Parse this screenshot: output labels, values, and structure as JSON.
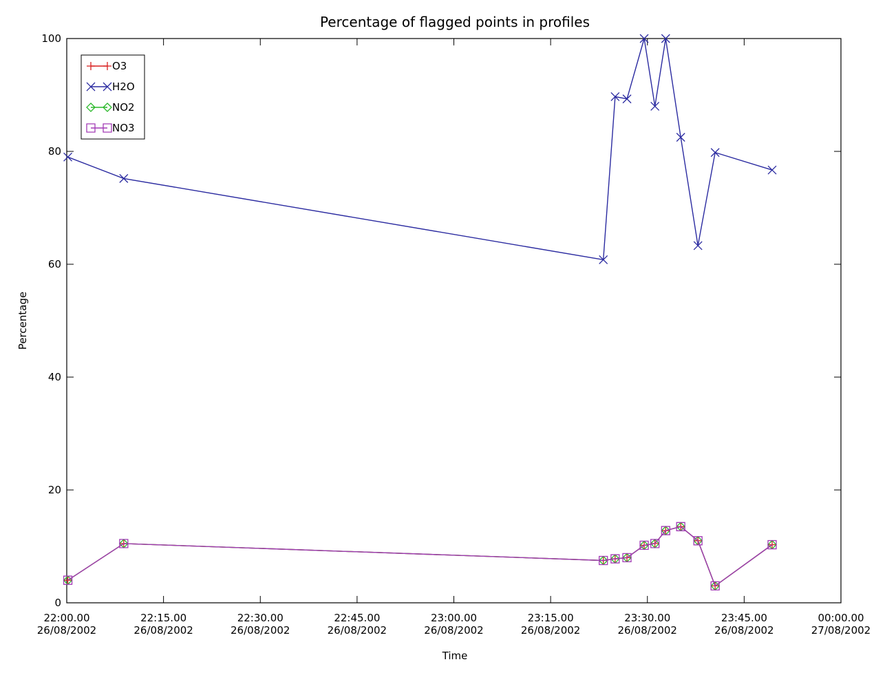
{
  "chart_data": {
    "type": "line",
    "title": "Percentage of flagged points in profiles",
    "xlabel": "Time",
    "ylabel": "Percentage",
    "ylim": [
      0,
      100
    ],
    "xlim": [
      "2002-08-26T22:00:00",
      "2002-08-27T00:00:00"
    ],
    "grid": false,
    "legend_position": "top-left",
    "x_ticks": [
      {
        "value": "2002-08-26T22:00:00",
        "time": "22:00.00",
        "date": "26/08/2002"
      },
      {
        "value": "2002-08-26T22:15:00",
        "time": "22:15.00",
        "date": "26/08/2002"
      },
      {
        "value": "2002-08-26T22:30:00",
        "time": "22:30.00",
        "date": "26/08/2002"
      },
      {
        "value": "2002-08-26T22:45:00",
        "time": "22:45.00",
        "date": "26/08/2002"
      },
      {
        "value": "2002-08-26T23:00:00",
        "time": "23:00.00",
        "date": "26/08/2002"
      },
      {
        "value": "2002-08-26T23:15:00",
        "time": "23:15.00",
        "date": "26/08/2002"
      },
      {
        "value": "2002-08-26T23:30:00",
        "time": "23:30.00",
        "date": "26/08/2002"
      },
      {
        "value": "2002-08-26T23:45:00",
        "time": "23:45.00",
        "date": "26/08/2002"
      },
      {
        "value": "2002-08-27T00:00:00",
        "time": "00:00.00",
        "date": "27/08/2002"
      }
    ],
    "y_ticks": [
      0,
      20,
      40,
      60,
      80,
      100
    ],
    "series": [
      {
        "name": "O3",
        "color": "#d81f1f",
        "marker": "plus",
        "x": [
          "2002-08-26T22:00:10",
          "2002-08-26T22:08:50",
          "2002-08-26T23:23:10",
          "2002-08-26T23:25:00",
          "2002-08-26T23:26:50",
          "2002-08-26T23:29:30",
          "2002-08-26T23:31:10",
          "2002-08-26T23:32:50",
          "2002-08-26T23:35:10",
          "2002-08-26T23:37:50",
          "2002-08-26T23:40:30",
          "2002-08-26T23:49:20"
        ],
        "y": [
          4,
          10.5,
          7.5,
          7.8,
          8,
          10.2,
          10.5,
          12.8,
          13.5,
          11,
          3,
          10.3
        ]
      },
      {
        "name": "H2O",
        "color": "#2a2aa0",
        "marker": "x",
        "x": [
          "2002-08-26T22:00:10",
          "2002-08-26T22:08:50",
          "2002-08-26T23:23:10",
          "2002-08-26T23:25:00",
          "2002-08-26T23:26:50",
          "2002-08-26T23:29:30",
          "2002-08-26T23:31:10",
          "2002-08-26T23:32:50",
          "2002-08-26T23:35:10",
          "2002-08-26T23:37:50",
          "2002-08-26T23:40:30",
          "2002-08-26T23:49:20"
        ],
        "y": [
          79,
          75.2,
          60.8,
          89.7,
          89.3,
          100,
          88,
          100,
          82.5,
          63.3,
          79.8,
          76.7
        ]
      },
      {
        "name": "NO2",
        "color": "#29b829",
        "marker": "diamond",
        "x": [
          "2002-08-26T22:00:10",
          "2002-08-26T22:08:50",
          "2002-08-26T23:23:10",
          "2002-08-26T23:25:00",
          "2002-08-26T23:26:50",
          "2002-08-26T23:29:30",
          "2002-08-26T23:31:10",
          "2002-08-26T23:32:50",
          "2002-08-26T23:35:10",
          "2002-08-26T23:37:50",
          "2002-08-26T23:40:30",
          "2002-08-26T23:49:20"
        ],
        "y": [
          4,
          10.5,
          7.5,
          7.8,
          8,
          10.2,
          10.5,
          12.8,
          13.5,
          11,
          3,
          10.3
        ]
      },
      {
        "name": "NO3",
        "color": "#a23ab5",
        "marker": "square",
        "x": [
          "2002-08-26T22:00:10",
          "2002-08-26T22:08:50",
          "2002-08-26T23:23:10",
          "2002-08-26T23:25:00",
          "2002-08-26T23:26:50",
          "2002-08-26T23:29:30",
          "2002-08-26T23:31:10",
          "2002-08-26T23:32:50",
          "2002-08-26T23:35:10",
          "2002-08-26T23:37:50",
          "2002-08-26T23:40:30",
          "2002-08-26T23:49:20"
        ],
        "y": [
          4,
          10.5,
          7.5,
          7.8,
          8,
          10.2,
          10.5,
          12.8,
          13.5,
          11,
          3,
          10.3
        ]
      }
    ]
  }
}
